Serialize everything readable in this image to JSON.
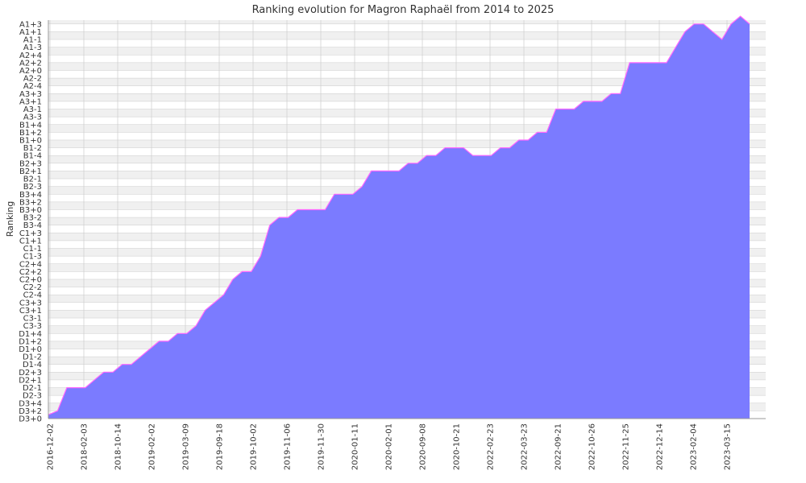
{
  "chart_data": {
    "type": "area",
    "title": "Ranking evolution for Magron Raphaël from 2014 to 2025",
    "xlabel": "",
    "ylabel": "Ranking",
    "y_ticks": [
      "D3+0",
      "D3+2",
      "D3+4",
      "D2-3",
      "D2-1",
      "D2+1",
      "D2+3",
      "D1-4",
      "D1-2",
      "D1+0",
      "D1+2",
      "D1+4",
      "C3-3",
      "C3-1",
      "C3+1",
      "C3+3",
      "C2-4",
      "C2-2",
      "C2+0",
      "C2+2",
      "C2+4",
      "C1-3",
      "C1-1",
      "C1+1",
      "C1+3",
      "B3-4",
      "B3-2",
      "B3+0",
      "B3+2",
      "B3+4",
      "B2-3",
      "B2-1",
      "B2+1",
      "B2+3",
      "B1-4",
      "B1-2",
      "B1+0",
      "B1+2",
      "B1+4",
      "A3-3",
      "A3-1",
      "A3+1",
      "A3+3",
      "A2-4",
      "A2-2",
      "A2+0",
      "A2+2",
      "A2+4",
      "A1-3",
      "A1-1",
      "A1+1",
      "A1+3"
    ],
    "x_ticks": [
      "2016-12-02",
      "2018-02-03",
      "2018-10-14",
      "2019-02-02",
      "2019-03-09",
      "2019-09-18",
      "2019-10-02",
      "2019-11-06",
      "2019-11-30",
      "2020-01-11",
      "2020-02-01",
      "2020-09-08",
      "2020-10-21",
      "2022-02-23",
      "2022-03-23",
      "2022-09-21",
      "2022-10-26",
      "2022-11-25",
      "2022-12-14",
      "2023-02-04",
      "2023-03-15"
    ],
    "series": [
      {
        "values": [
          0.5,
          1,
          4,
          4,
          4,
          5,
          6,
          6,
          7,
          7,
          8,
          9,
          10,
          10,
          11,
          11,
          12,
          14,
          15,
          16,
          18,
          19,
          19,
          21,
          25,
          26,
          26,
          27,
          27,
          27,
          27,
          29,
          29,
          29,
          30,
          32,
          32,
          32,
          32,
          33,
          33,
          34,
          34,
          35,
          35,
          35,
          34,
          34,
          34,
          35,
          35,
          36,
          36,
          37,
          37,
          40,
          40,
          40,
          41,
          41,
          41,
          42,
          42,
          46,
          46,
          46,
          46,
          46,
          48,
          50,
          51,
          51,
          50,
          49,
          51,
          52,
          51
        ]
      }
    ],
    "ylim": [
      0,
      51
    ],
    "grid": true,
    "colors": {
      "fill": "#7b7bff",
      "line": "#ff66ff",
      "grid": "#cccccc",
      "band": "#f0f0f0"
    }
  }
}
